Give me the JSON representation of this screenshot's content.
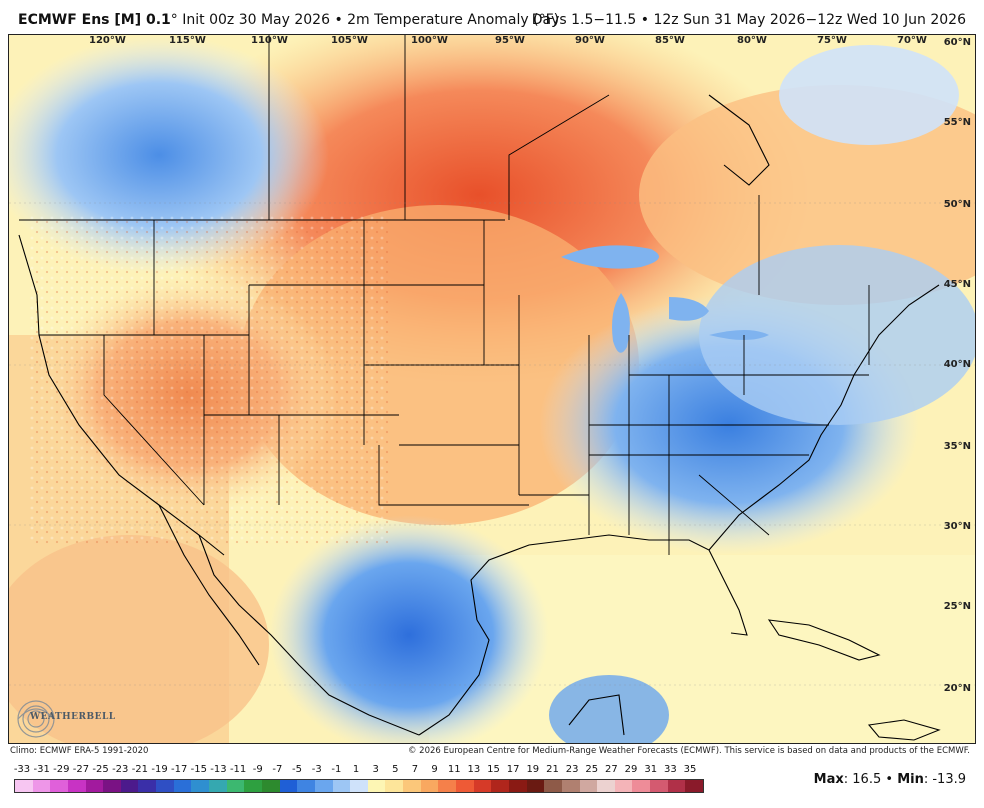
{
  "header": {
    "model": "ECMWF Ens [M] 0.1",
    "degree": "°",
    "init": "Init 00z 30 May 2026",
    "variable": "• 2m Temperature Anomaly (°F)",
    "valid": "Days 1.5−11.5 • 12z Sun 31 May 2026−12z Wed 10 Jun 2026"
  },
  "lon_labels": [
    "120°W",
    "115°W",
    "110°W",
    "105°W",
    "100°W",
    "95°W",
    "90°W",
    "85°W",
    "80°W",
    "75°W",
    "70°W"
  ],
  "lat_labels": [
    "60°N",
    "55°N",
    "50°N",
    "45°N",
    "40°N",
    "35°N",
    "30°N",
    "25°N",
    "20°N"
  ],
  "credits": {
    "climo": "Climo: ECMWF ERA-5 1991-2020",
    "copyright": "© 2026 European Centre for Medium-Range Weather Forecasts (ECMWF). This service is based on data and products of the ECMWF."
  },
  "legend": {
    "ticks": [
      "-33",
      "-31",
      "-29",
      "-27",
      "-25",
      "-23",
      "-21",
      "-19",
      "-17",
      "-15",
      "-13",
      "-11",
      "-9",
      "-7",
      "-5",
      "-3",
      "-1",
      "1",
      "3",
      "5",
      "7",
      "9",
      "11",
      "13",
      "15",
      "17",
      "19",
      "21",
      "23",
      "25",
      "27",
      "29",
      "31",
      "33",
      "35"
    ],
    "colors": [
      "#f7c6f2",
      "#ee96e8",
      "#e060da",
      "#c833c4",
      "#a21a9e",
      "#7a1284",
      "#4c1a8c",
      "#3a2fa8",
      "#2f4fc4",
      "#2a6fd8",
      "#2f8fd0",
      "#35a8b0",
      "#3cb870",
      "#2ea040",
      "#2d8a2e",
      "#1f5fd6",
      "#3f84e2",
      "#6aa6ee",
      "#9dc6f4",
      "#cfe2fa",
      "#fdf6b4",
      "#fde59a",
      "#fbc77a",
      "#f9a860",
      "#f5804a",
      "#ee5a36",
      "#d63a28",
      "#b0261c",
      "#8a1a14",
      "#6a1a12",
      "#8e5a48",
      "#b08070",
      "#d0a8a0",
      "#ecd2d0",
      "#f4b4b8",
      "#ee8c98",
      "#d45a70",
      "#b03048",
      "#8a1a2a"
    ]
  },
  "stats": {
    "max_label": "Max",
    "max_value": ": 16.5",
    "sep": "•",
    "min_label": "Min",
    "min_value": ": -13.9"
  },
  "logo": {
    "text": "WEATHERBELL"
  }
}
